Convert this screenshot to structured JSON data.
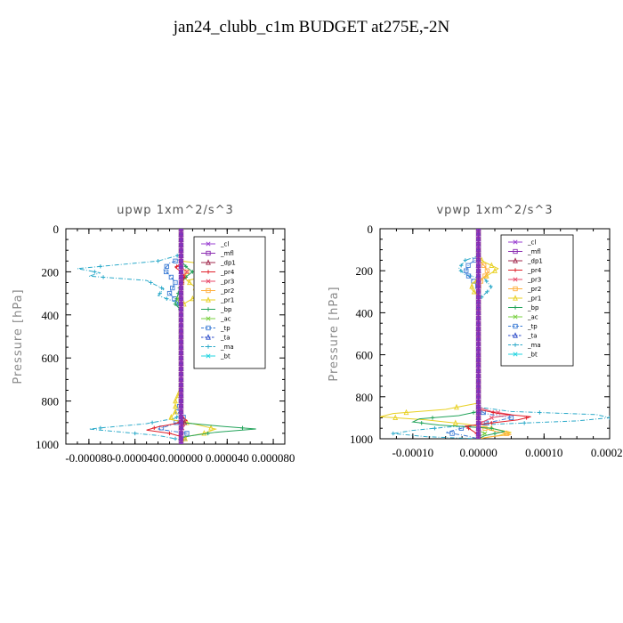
{
  "title": "jan24_clubb_c1m  BUDGET at275E,-2N",
  "legend_names": [
    "_cl",
    "_mfl",
    "_dp1",
    "_pr4",
    "_pr3",
    "_pr2",
    "_pr1",
    "_bp",
    "_ac",
    "_tp",
    "_ta",
    "_ma",
    "_bt"
  ],
  "colors": [
    "#9a3fd1",
    "#8a2bb0",
    "#a22a4e",
    "#e0202a",
    "#e84a6a",
    "#ffae3c",
    "#e8d021",
    "#22a35a",
    "#78d040",
    "#3a7bd5",
    "#2848c8",
    "#2aa9c9",
    "#20d4e0"
  ],
  "chart_data": [
    {
      "type": "line",
      "title": "upwp   1xm^2/s^3",
      "ylabel": "Pressure [hPa]",
      "xlim": [
        -0.0001,
        9e-05
      ],
      "ylim": [
        1000,
        0
      ],
      "xticks": [
        -8e-05,
        -4e-05,
        0,
        4e-05,
        8e-05
      ],
      "xtick_labels": [
        "-0.000080",
        "-0.000040",
        "0.000000",
        "0.000040",
        "0.000080"
      ],
      "yticks": [
        0,
        200,
        400,
        600,
        800,
        1000
      ],
      "ytick_labels": [
        "0",
        "200",
        "400",
        "600",
        "800",
        "1000"
      ],
      "legend": "top-right",
      "series": [
        {
          "name": "_ma",
          "style": "dashdot",
          "values": [
            [
              0,
              0
            ],
            [
              0,
              120
            ],
            [
              -2e-05,
              150
            ],
            [
              -9e-05,
              185
            ],
            [
              -7e-05,
              205
            ],
            [
              -8e-05,
              220
            ],
            [
              -3e-05,
              240
            ],
            [
              -1.5e-05,
              280
            ],
            [
              -2e-05,
              310
            ],
            [
              -5e-06,
              340
            ],
            [
              0,
              360
            ],
            [
              0,
              860
            ],
            [
              -5e-06,
              880
            ],
            [
              -3e-05,
              905
            ],
            [
              -8e-05,
              930
            ],
            [
              -5e-05,
              945
            ],
            [
              -2e-05,
              960
            ],
            [
              0,
              980
            ],
            [
              0,
              1000
            ]
          ]
        },
        {
          "name": "_tp",
          "style": "dashdot",
          "values": [
            [
              0,
              0
            ],
            [
              0,
              140
            ],
            [
              -1e-05,
              160
            ],
            [
              -1.5e-05,
              190
            ],
            [
              -1e-05,
              215
            ],
            [
              -5e-06,
              250
            ],
            [
              -1e-05,
              300
            ],
            [
              -5e-06,
              330
            ],
            [
              0,
              360
            ],
            [
              0,
              800
            ],
            [
              -3e-06,
              850
            ],
            [
              3e-06,
              880
            ],
            [
              -8e-06,
              910
            ],
            [
              -2e-05,
              930
            ],
            [
              5e-06,
              950
            ],
            [
              0,
              1000
            ]
          ]
        },
        {
          "name": "_pr1",
          "style": "solid",
          "values": [
            [
              0,
              0
            ],
            [
              0,
              150
            ],
            [
              3e-05,
              170
            ],
            [
              6.5e-05,
              195
            ],
            [
              5.5e-05,
              215
            ],
            [
              2e-05,
              225
            ],
            [
              5e-06,
              240
            ],
            [
              1.2e-05,
              270
            ],
            [
              1.5e-05,
              310
            ],
            [
              5e-06,
              340
            ],
            [
              0,
              360
            ],
            [
              0,
              740
            ],
            [
              -5e-06,
              800
            ],
            [
              -5e-06,
              850
            ],
            [
              -1e-05,
              885
            ],
            [
              1e-05,
              905
            ],
            [
              3e-05,
              930
            ],
            [
              2e-05,
              950
            ],
            [
              5e-06,
              965
            ],
            [
              0,
              1000
            ]
          ]
        },
        {
          "name": "_pr2",
          "style": "solid",
          "values": [
            [
              0,
              0
            ],
            [
              0,
              180
            ],
            [
              5e-06,
              200
            ],
            [
              0,
              260
            ],
            [
              0,
              1000
            ]
          ]
        },
        {
          "name": "_bp",
          "style": "solid",
          "values": [
            [
              0,
              0
            ],
            [
              0,
              150
            ],
            [
              5e-06,
              180
            ],
            [
              1e-05,
              200
            ],
            [
              5e-06,
              220
            ],
            [
              0,
              250
            ],
            [
              -5e-06,
              350
            ],
            [
              0,
              380
            ],
            [
              0,
              900
            ],
            [
              3e-05,
              915
            ],
            [
              6.5e-05,
              930
            ],
            [
              3e-05,
              945
            ],
            [
              1e-05,
              960
            ],
            [
              0,
              970
            ],
            [
              0,
              1000
            ]
          ]
        },
        {
          "name": "_ac",
          "style": "solid",
          "values": [
            [
              0,
              0
            ],
            [
              0,
              300
            ],
            [
              -3e-06,
              330
            ],
            [
              0,
              360
            ],
            [
              0,
              1000
            ]
          ]
        },
        {
          "name": "_pr3",
          "style": "solid",
          "values": [
            [
              0,
              0
            ],
            [
              0,
              180
            ],
            [
              5e-06,
              200
            ],
            [
              0,
              230
            ],
            [
              0,
              900
            ],
            [
              3e-06,
              915
            ],
            [
              0,
              930
            ],
            [
              0,
              1000
            ]
          ]
        },
        {
          "name": "_pr4",
          "style": "solid",
          "values": [
            [
              0,
              0
            ],
            [
              0,
              160
            ],
            [
              -5e-06,
              180
            ],
            [
              0,
              200
            ],
            [
              3e-06,
              220
            ],
            [
              0,
              260
            ],
            [
              0,
              870
            ],
            [
              5e-06,
              890
            ],
            [
              -5e-06,
              905
            ],
            [
              -2e-05,
              920
            ],
            [
              -3e-05,
              935
            ],
            [
              -1e-05,
              950
            ],
            [
              0,
              965
            ],
            [
              0,
              1000
            ]
          ]
        },
        {
          "name": "_dp1",
          "style": "solid",
          "values": [
            [
              0,
              0
            ],
            [
              0,
              880
            ],
            [
              3e-06,
              900
            ],
            [
              0,
              920
            ],
            [
              0,
              1000
            ]
          ]
        },
        {
          "name": "_ta",
          "style": "dashed",
          "values": [
            [
              0,
              0
            ],
            [
              0,
              1000
            ]
          ]
        },
        {
          "name": "_bt",
          "style": "solid",
          "values": [
            [
              0,
              0
            ],
            [
              0,
              1000
            ]
          ]
        },
        {
          "name": "_cl",
          "style": "solid",
          "values": [
            [
              0,
              0
            ],
            [
              0,
              1000
            ]
          ]
        },
        {
          "name": "_mfl",
          "style": "solid",
          "values": [
            [
              0,
              0
            ],
            [
              0,
              1000
            ]
          ]
        }
      ]
    },
    {
      "type": "line",
      "title": "vpwp   1xm^2/s^3",
      "ylabel": "Pressure [hPa]",
      "xlim": [
        -0.00015,
        0.0002
      ],
      "ylim": [
        1000,
        0
      ],
      "xticks": [
        -0.0001,
        0,
        0.0001,
        0.0002
      ],
      "xtick_labels": [
        "-0.00010",
        "0.00000",
        "0.00010",
        "0.00020"
      ],
      "yticks": [
        0,
        200,
        400,
        600,
        800,
        1000
      ],
      "ytick_labels": [
        "0",
        "200",
        "400",
        "600",
        "800",
        "1000"
      ],
      "legend": "top-right",
      "series": [
        {
          "name": "_ma",
          "style": "dashdot",
          "values": [
            [
              0,
              0
            ],
            [
              0,
              130
            ],
            [
              -2e-05,
              150
            ],
            [
              -3e-05,
              190
            ],
            [
              -2e-05,
              220
            ],
            [
              1e-05,
              240
            ],
            [
              2e-05,
              280
            ],
            [
              1e-05,
              310
            ],
            [
              0,
              340
            ],
            [
              0,
              850
            ],
            [
              5e-05,
              870
            ],
            [
              0.00018,
              885
            ],
            [
              0.0002,
              900
            ],
            [
              0.00015,
              915
            ],
            [
              3e-05,
              930
            ],
            [
              -5e-05,
              945
            ],
            [
              -0.0001,
              960
            ],
            [
              -0.00013,
              975
            ],
            [
              -8e-05,
              990
            ],
            [
              0,
              1000
            ]
          ]
        },
        {
          "name": "_tp",
          "style": "dashdot",
          "values": [
            [
              0,
              0
            ],
            [
              0,
              140
            ],
            [
              -1.5e-05,
              170
            ],
            [
              -2e-05,
              210
            ],
            [
              -1e-05,
              240
            ],
            [
              0,
              280
            ],
            [
              0,
              860
            ],
            [
              1e-05,
              880
            ],
            [
              5e-05,
              900
            ],
            [
              2e-05,
              920
            ],
            [
              -2e-05,
              945
            ],
            [
              -5e-05,
              970
            ],
            [
              -2e-05,
              985
            ],
            [
              0,
              1000
            ]
          ]
        },
        {
          "name": "_pr1",
          "style": "solid",
          "values": [
            [
              0,
              0
            ],
            [
              0,
              140
            ],
            [
              1e-05,
              160
            ],
            [
              3e-05,
              190
            ],
            [
              1e-05,
              230
            ],
            [
              -1e-05,
              260
            ],
            [
              -1e-05,
              290
            ],
            [
              0,
              320
            ],
            [
              0,
              830
            ],
            [
              -5e-05,
              860
            ],
            [
              -0.00013,
              880
            ],
            [
              -0.00015,
              895
            ],
            [
              -8e-05,
              910
            ],
            [
              -2e-05,
              930
            ],
            [
              2e-05,
              950
            ],
            [
              5e-05,
              970
            ],
            [
              3e-05,
              985
            ],
            [
              0,
              1000
            ]
          ]
        },
        {
          "name": "_pr2",
          "style": "solid",
          "values": [
            [
              0,
              0
            ],
            [
              0,
              150
            ],
            [
              1e-05,
              180
            ],
            [
              1.5e-05,
              210
            ],
            [
              5e-06,
              240
            ],
            [
              0,
              280
            ],
            [
              0,
              940
            ],
            [
              2e-05,
              960
            ],
            [
              5e-05,
              980
            ],
            [
              2e-05,
              990
            ],
            [
              0,
              1000
            ]
          ]
        },
        {
          "name": "_bp",
          "style": "solid",
          "values": [
            [
              0,
              0
            ],
            [
              0,
              870
            ],
            [
              -3e-05,
              890
            ],
            [
              -9e-05,
              905
            ],
            [
              -0.0001,
              920
            ],
            [
              -6e-05,
              935
            ],
            [
              2e-05,
              950
            ],
            [
              4e-05,
              965
            ],
            [
              1e-05,
              985
            ],
            [
              0,
              1000
            ]
          ]
        },
        {
          "name": "_ac",
          "style": "solid",
          "values": [
            [
              0,
              0
            ],
            [
              0,
              960
            ],
            [
              1e-05,
              975
            ],
            [
              0,
              990
            ],
            [
              0,
              1000
            ]
          ]
        },
        {
          "name": "_pr3",
          "style": "solid",
          "values": [
            [
              0,
              0
            ],
            [
              0,
              850
            ],
            [
              2e-05,
              870
            ],
            [
              5e-05,
              885
            ],
            [
              2e-05,
              900
            ],
            [
              0,
              930
            ],
            [
              0,
              1000
            ]
          ]
        },
        {
          "name": "_pr4",
          "style": "solid",
          "values": [
            [
              0,
              0
            ],
            [
              0,
              860
            ],
            [
              3e-05,
              880
            ],
            [
              8e-05,
              895
            ],
            [
              6e-05,
              910
            ],
            [
              2e-05,
              925
            ],
            [
              -2e-05,
              940
            ],
            [
              -1e-05,
              960
            ],
            [
              0,
              980
            ],
            [
              0,
              1000
            ]
          ]
        },
        {
          "name": "_dp1",
          "style": "solid",
          "values": [
            [
              0,
              0
            ],
            [
              0,
              1000
            ]
          ]
        },
        {
          "name": "_ta",
          "style": "dashed",
          "values": [
            [
              0,
              0
            ],
            [
              0,
              1000
            ]
          ]
        },
        {
          "name": "_bt",
          "style": "solid",
          "values": [
            [
              0,
              0
            ],
            [
              0,
              1000
            ]
          ]
        },
        {
          "name": "_cl",
          "style": "solid",
          "values": [
            [
              0,
              0
            ],
            [
              0,
              1000
            ]
          ]
        },
        {
          "name": "_mfl",
          "style": "solid",
          "values": [
            [
              0,
              0
            ],
            [
              0,
              1000
            ]
          ]
        }
      ]
    }
  ]
}
